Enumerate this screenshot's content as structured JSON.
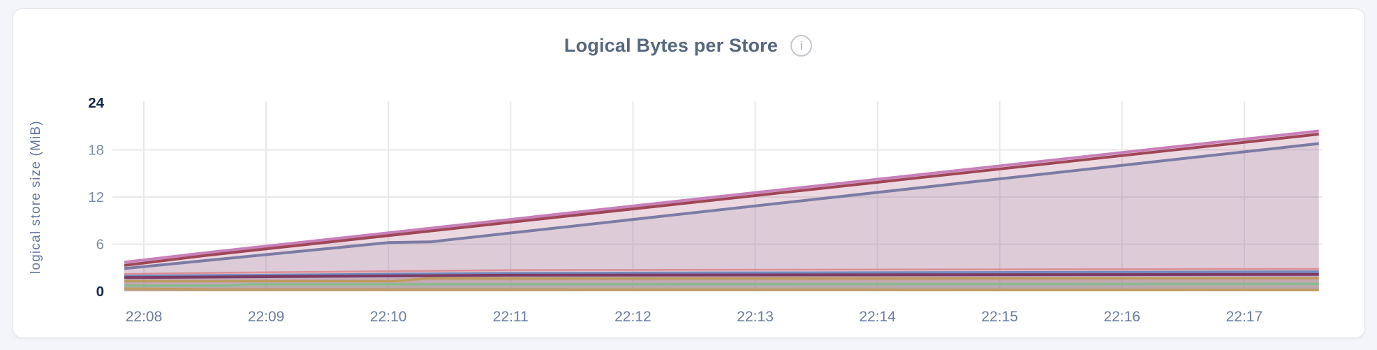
{
  "page": {
    "background": "#F4F5FA"
  },
  "card": {
    "background": "#FFFFFF",
    "border": "#E3E4E8"
  },
  "header": {
    "title": "Logical Bytes per Store",
    "info_icon": "i"
  },
  "colors": {
    "title": "#57687F",
    "y_tick_bold": "#16284A",
    "y_tick_normal": "#7D8CA7",
    "x_tick": "#6B7E9E",
    "axis_label": "#64789B",
    "gridline": "#E9E9EC"
  },
  "chart_data": {
    "type": "area",
    "title": "Logical Bytes per Store",
    "xlabel": "",
    "ylabel": "logical store size (MiB)",
    "ylim": [
      0,
      24
    ],
    "y_ticks": [
      0,
      6,
      12,
      18,
      24
    ],
    "y_gridlines": [
      6,
      12,
      18
    ],
    "bold_y_ticks": [
      0,
      24
    ],
    "x_tick_labels": [
      "22:08",
      "22:09",
      "22:10",
      "22:11",
      "22:12",
      "22:13",
      "22:14",
      "22:15",
      "22:16",
      "22:17"
    ],
    "x_domain_ticks": [
      -0.16,
      9.61
    ],
    "grid": true,
    "legend": "none",
    "fill_opacity": 0.13,
    "series": [
      {
        "name": "series-1",
        "color": "#C97FB8",
        "width": 4,
        "points": [
          [
            -0.16,
            3.7
          ],
          [
            0.5,
            4.9
          ],
          [
            9.61,
            20.4
          ]
        ]
      },
      {
        "name": "series-2",
        "color": "#9E4757",
        "width": 4,
        "points": [
          [
            -0.16,
            3.3
          ],
          [
            0.5,
            4.55
          ],
          [
            9.61,
            20.0
          ]
        ]
      },
      {
        "name": "series-3",
        "color": "#7C7BA3",
        "width": 4,
        "points": [
          [
            -0.16,
            2.9
          ],
          [
            2.0,
            6.2
          ],
          [
            2.35,
            6.3
          ],
          [
            9.61,
            18.8
          ]
        ]
      },
      {
        "name": "series-4",
        "color": "#DC8F96",
        "width": 2.5,
        "points": [
          [
            -0.16,
            2.2
          ],
          [
            0.5,
            2.35
          ],
          [
            3.0,
            2.7
          ],
          [
            9.61,
            2.85
          ]
        ]
      },
      {
        "name": "series-5",
        "color": "#7389BD",
        "width": 3.5,
        "points": [
          [
            -0.16,
            1.95
          ],
          [
            3.0,
            2.3
          ],
          [
            9.61,
            2.5
          ]
        ]
      },
      {
        "name": "series-6",
        "color": "#7C3B64",
        "width": 4,
        "points": [
          [
            -0.16,
            1.75
          ],
          [
            3.0,
            2.05
          ],
          [
            9.61,
            2.15
          ]
        ]
      },
      {
        "name": "series-7",
        "color": "#BE9B5E",
        "width": 3.5,
        "points": [
          [
            -0.16,
            1.3
          ],
          [
            2.05,
            1.3
          ],
          [
            2.3,
            1.62
          ],
          [
            9.61,
            1.65
          ]
        ]
      },
      {
        "name": "series-8",
        "color": "#8BBA90",
        "width": 3.5,
        "points": [
          [
            -0.16,
            0.72
          ],
          [
            0.7,
            0.72
          ],
          [
            0.85,
            0.9
          ],
          [
            9.61,
            0.95
          ]
        ]
      },
      {
        "name": "series-9",
        "color": "#C09B63",
        "width": 3.5,
        "points": [
          [
            -0.16,
            0.33
          ],
          [
            0.6,
            0.25
          ],
          [
            9.61,
            0.18
          ]
        ]
      }
    ]
  }
}
